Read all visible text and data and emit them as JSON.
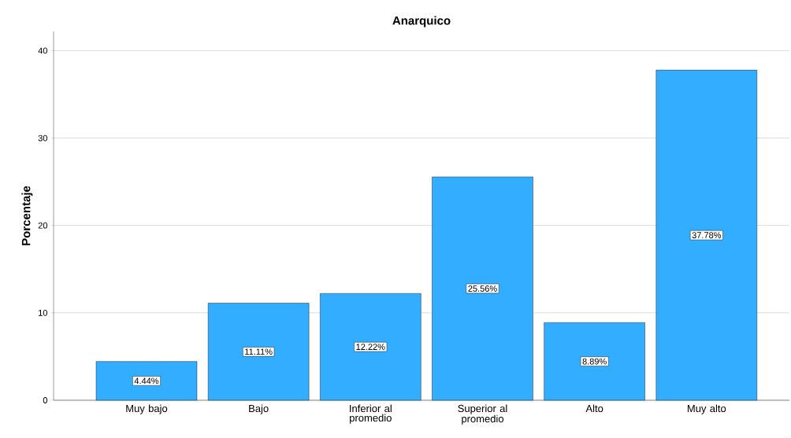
{
  "chart_data": {
    "type": "bar",
    "title": "Anarquico",
    "ylabel": "Porcentaje",
    "categories": [
      "Muy bajo",
      "Bajo",
      "Inferior al promedio",
      "Superior al promedio",
      "Alto",
      "Muy alto"
    ],
    "values": [
      4.44,
      11.11,
      12.22,
      25.56,
      8.89,
      37.78
    ],
    "value_labels": [
      "4.44%",
      "11.11%",
      "12.22%",
      "25.56%",
      "8.89%",
      "37.78%"
    ],
    "color": "#33adff",
    "ylim": [
      0,
      42.2
    ],
    "yticks": [
      0,
      10,
      20,
      30,
      40
    ],
    "grid": "y"
  }
}
